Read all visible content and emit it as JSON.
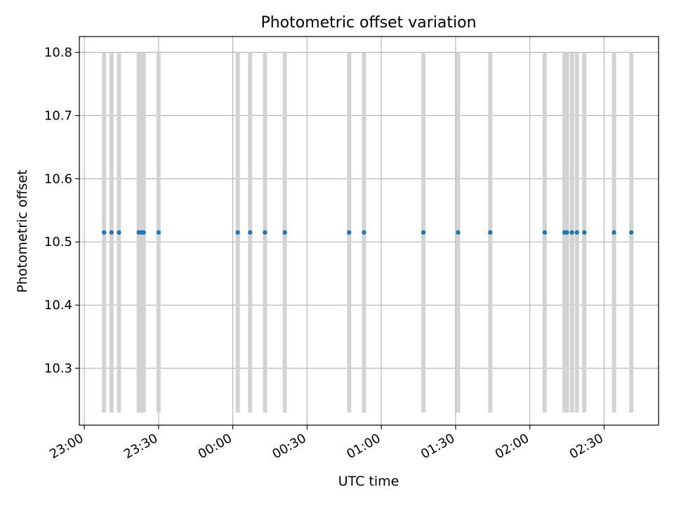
{
  "chart_data": {
    "type": "scatter",
    "title": "Photometric offset variation",
    "xlabel": "UTC time",
    "ylabel": "Photometric offset",
    "x_unit": "UTC time (HH:MM), night spanning midnight",
    "xlim": [
      "22:58",
      "02:52"
    ],
    "ylim": [
      10.21,
      10.825
    ],
    "grid": true,
    "xticks": [
      "23:00",
      "23:30",
      "00:00",
      "00:30",
      "01:00",
      "01:30",
      "02:00",
      "02:30"
    ],
    "yticks": [
      "10.3",
      "10.4",
      "10.5",
      "10.6",
      "10.7",
      "10.8"
    ],
    "x": [
      "23:08",
      "23:11",
      "23:14",
      "23:22",
      "23:23",
      "23:24",
      "23:30",
      "00:02",
      "00:07",
      "00:13",
      "00:21",
      "00:47",
      "00:53",
      "01:17",
      "01:31",
      "01:44",
      "02:06",
      "02:14",
      "02:15",
      "02:17",
      "02:19",
      "02:22",
      "02:34",
      "02:41"
    ],
    "y": [
      10.515,
      10.515,
      10.515,
      10.515,
      10.515,
      10.515,
      10.515,
      10.515,
      10.515,
      10.515,
      10.515,
      10.515,
      10.515,
      10.515,
      10.515,
      10.515,
      10.515,
      10.515,
      10.515,
      10.515,
      10.515,
      10.515,
      10.515,
      10.515
    ],
    "vspan_range": [
      10.23,
      10.8
    ],
    "colors": {
      "points": "#1f77b4",
      "vlines": "#d3d3d3",
      "grid": "#b0b0b0"
    }
  }
}
